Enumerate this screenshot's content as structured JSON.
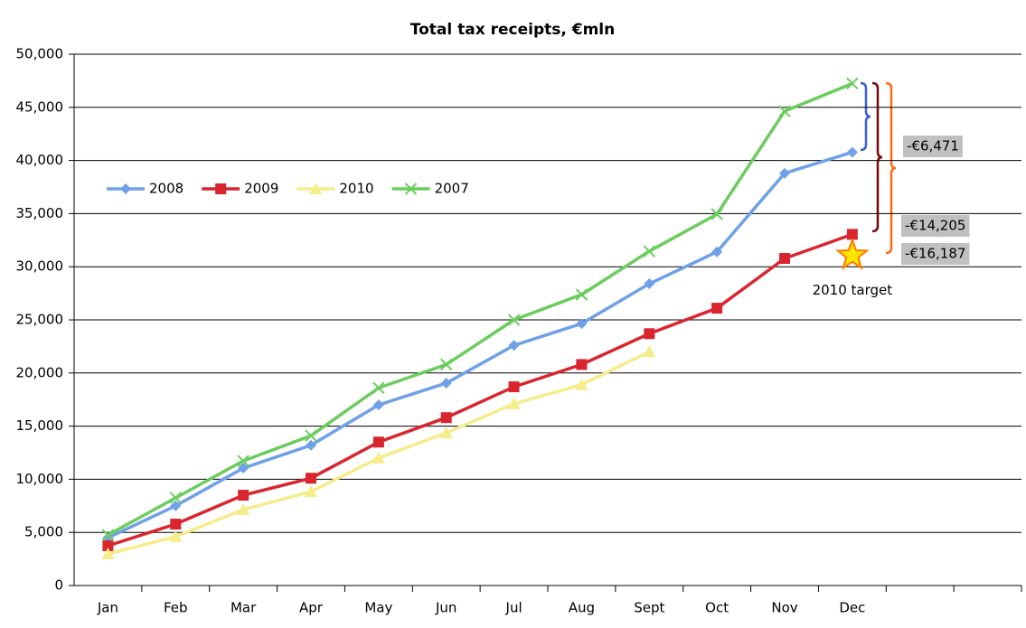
{
  "chart_data": {
    "type": "line",
    "title": "Total tax receipts, €mln",
    "categories": [
      "Jan",
      "Feb",
      "Mar",
      "Apr",
      "May",
      "Jun",
      "Jul",
      "Aug",
      "Sept",
      "Oct",
      "Nov",
      "Dec",
      null,
      null
    ],
    "series": [
      {
        "name": "2008",
        "color": "#6fa0e8",
        "marker": "diamond",
        "values": [
          4500,
          7500,
          11050,
          13200,
          17000,
          19050,
          22600,
          24650,
          28400,
          31400,
          38800,
          40779,
          null,
          null
        ]
      },
      {
        "name": "2009",
        "color": "#d9262e",
        "marker": "square",
        "values": [
          3740,
          5780,
          8500,
          10100,
          13500,
          15800,
          18700,
          20800,
          23700,
          26100,
          30780,
          33045,
          null,
          null
        ]
      },
      {
        "name": "2010",
        "color": "#f5ec8a",
        "marker": "triangle",
        "values": [
          2980,
          4600,
          7140,
          8840,
          12000,
          14370,
          17100,
          18900,
          22000,
          null,
          null,
          null,
          null,
          null
        ]
      },
      {
        "name": "2007",
        "color": "#6ccd5e",
        "marker": "x",
        "values": [
          4760,
          8250,
          11730,
          14100,
          18600,
          20800,
          25000,
          27380,
          31460,
          34950,
          44640,
          47250,
          null,
          null
        ]
      }
    ],
    "ylim": [
      0,
      50000
    ],
    "yticks": [
      0,
      {
        "value": 5000,
        "label": "5,000"
      },
      {
        "value": 10000,
        "label": "10,000"
      },
      {
        "value": 15000,
        "label": "15,000"
      },
      {
        "value": 20000,
        "label": "20,000"
      },
      {
        "value": 25000,
        "label": "25,000"
      },
      {
        "value": 30000,
        "label": "30,000"
      },
      {
        "value": 35000,
        "label": "35,000"
      },
      {
        "value": 40000,
        "label": "40,000"
      },
      {
        "value": 45000,
        "label": "45,000"
      },
      {
        "value": 50000,
        "label": "50,000"
      }
    ],
    "grid": true,
    "legend": "upper left",
    "target": {
      "label": "2010 target",
      "category": "Dec",
      "value": 31063
    },
    "annotations": [
      {
        "text": "-€6,471",
        "color": "#3a5fd8"
      },
      {
        "text": "-€14,205",
        "color": "#cc0000"
      },
      {
        "text": "-€16,187",
        "color": "#ff6a13"
      }
    ]
  }
}
